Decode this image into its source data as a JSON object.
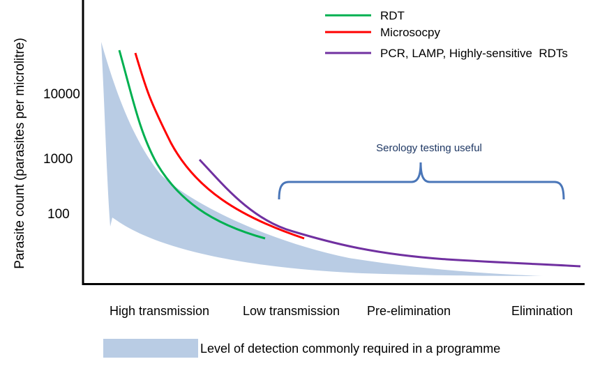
{
  "chart_data": {
    "type": "line",
    "title": "",
    "ylabel": "Parasite count (parasites per microlitre)",
    "xlabel": "",
    "y_scale": "log",
    "y_ticks": [
      "10000",
      "1000",
      "100"
    ],
    "x_categories": [
      "High transmission",
      "Low transmission",
      "Pre-elimination",
      "Elimination"
    ],
    "legend_position": "top-right",
    "grid": false,
    "series": [
      {
        "name": "RDT",
        "color": "#00b050"
      },
      {
        "name": "Microsocpy",
        "color": "#ff0000"
      },
      {
        "name": "PCR, LAMP, Highly-sensitive  RDTs",
        "color": "#7030a0"
      }
    ],
    "annotations": {
      "serology": "Serology testing useful",
      "detection_band": "Level of detection commonly required in a programme"
    },
    "colors": {
      "band": "#b9cce4",
      "brace": "#4a76b8",
      "serology_text": "#1f3864",
      "axis": "#000000"
    }
  }
}
